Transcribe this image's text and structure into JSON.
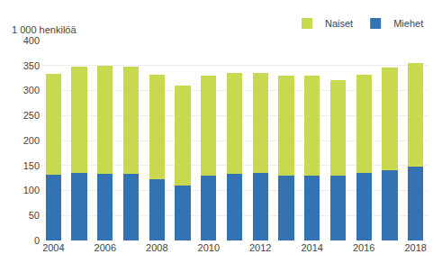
{
  "chart_data": {
    "type": "bar",
    "stacked": true,
    "ylabel": "1 000 henkilöä",
    "categories": [
      "2004",
      null,
      "2006",
      null,
      "2008",
      null,
      "2010",
      null,
      "2012",
      null,
      "2014",
      null,
      "2016",
      null,
      "2018"
    ],
    "series": [
      {
        "name": "Miehet",
        "color": "#3373b4",
        "values": [
          131,
          135,
          133,
          133,
          122,
          110,
          129,
          134,
          135,
          130,
          129,
          129,
          136,
          141,
          147
        ]
      },
      {
        "name": "Naiset",
        "color": "#c8d94f",
        "values": [
          202,
          213,
          217,
          214,
          209,
          200,
          201,
          201,
          200,
          200,
          200,
          192,
          196,
          205,
          208
        ]
      }
    ],
    "ylim": [
      0,
      400
    ],
    "yticks": [
      0,
      50,
      100,
      150,
      200,
      250,
      300,
      350,
      400
    ],
    "grid": true,
    "legend": "upper right"
  }
}
